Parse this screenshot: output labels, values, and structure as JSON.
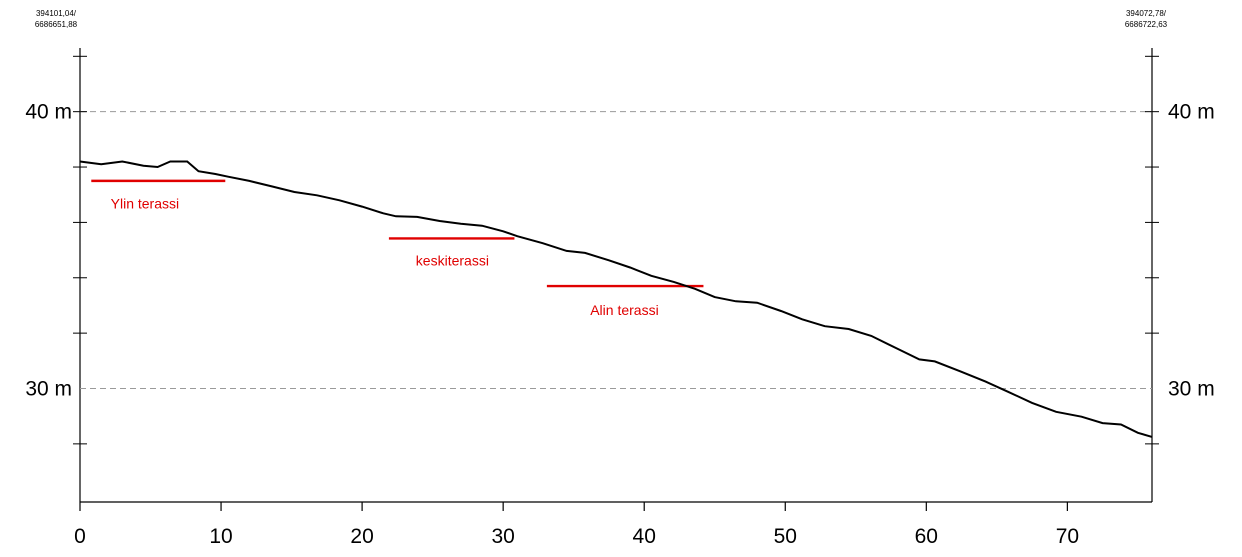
{
  "corners": {
    "left": [
      "394101,04/",
      "6686651,88"
    ],
    "right": [
      "394072,78/",
      "6686722,63"
    ]
  },
  "chart_data": {
    "type": "line",
    "title": "",
    "xlabel": "",
    "ylabel": "",
    "xlim": [
      0,
      76
    ],
    "ylim": [
      25.9,
      42.3
    ],
    "x_ticks": [
      0,
      10,
      20,
      30,
      40,
      50,
      60,
      70
    ],
    "x_tick_labels": [
      "0",
      "10",
      "20",
      "30",
      "40",
      "50",
      "60",
      "70"
    ],
    "y_minor_ticks": [
      28,
      32,
      34,
      36,
      38,
      40,
      42
    ],
    "y_labeled": [
      {
        "value": 40,
        "label": "40 m"
      },
      {
        "value": 30,
        "label": "30 m"
      }
    ],
    "series": [
      {
        "color": "#000000",
        "x": [
          0,
          1.5,
          3,
          4.5,
          5.5,
          6.4,
          7.6,
          8.4,
          9.6,
          10.5,
          12,
          13.6,
          15.2,
          16.8,
          18.4,
          20,
          21.5,
          22.4,
          23.9,
          25.5,
          27,
          28.5,
          30,
          31,
          32.8,
          34.5,
          35.8,
          37.5,
          39,
          40.5,
          42.1,
          43.6,
          45,
          46.5,
          48,
          49.7,
          51.2,
          52.8,
          54.5,
          56.1,
          57.9,
          59.5,
          60.6,
          62.4,
          64.2,
          65.8,
          67.5,
          69.2,
          71,
          72.5,
          73.8,
          75,
          76
        ],
        "y": [
          38.2,
          38.1,
          38.2,
          38.05,
          38.0,
          38.2,
          38.2,
          37.85,
          37.75,
          37.65,
          37.5,
          37.3,
          37.1,
          36.98,
          36.8,
          36.57,
          36.33,
          36.22,
          36.2,
          36.05,
          35.95,
          35.88,
          35.68,
          35.5,
          35.25,
          34.97,
          34.9,
          34.63,
          34.37,
          34.07,
          33.85,
          33.6,
          33.3,
          33.15,
          33.1,
          32.8,
          32.5,
          32.25,
          32.15,
          31.9,
          31.45,
          31.05,
          30.98,
          30.62,
          30.25,
          29.88,
          29.48,
          29.16,
          28.98,
          28.75,
          28.7,
          28.4,
          28.25
        ]
      }
    ],
    "terraces": [
      {
        "label": "Ylin terassi",
        "x_start": 0.8,
        "x_end": 10.3,
        "y": 37.5,
        "label_x": 4.6,
        "label_y": 36.5
      },
      {
        "label": "keskiterassi",
        "x_start": 21.9,
        "x_end": 30.8,
        "y": 35.42,
        "label_x": 26.4,
        "label_y": 34.45
      },
      {
        "label": "Alin terassi",
        "x_start": 33.1,
        "x_end": 44.2,
        "y": 33.7,
        "label_x": 38.6,
        "label_y": 32.65
      }
    ],
    "terrace_color": "#e00000",
    "grid": "dashed lines at 30 m and 40 m",
    "legend": "none"
  }
}
